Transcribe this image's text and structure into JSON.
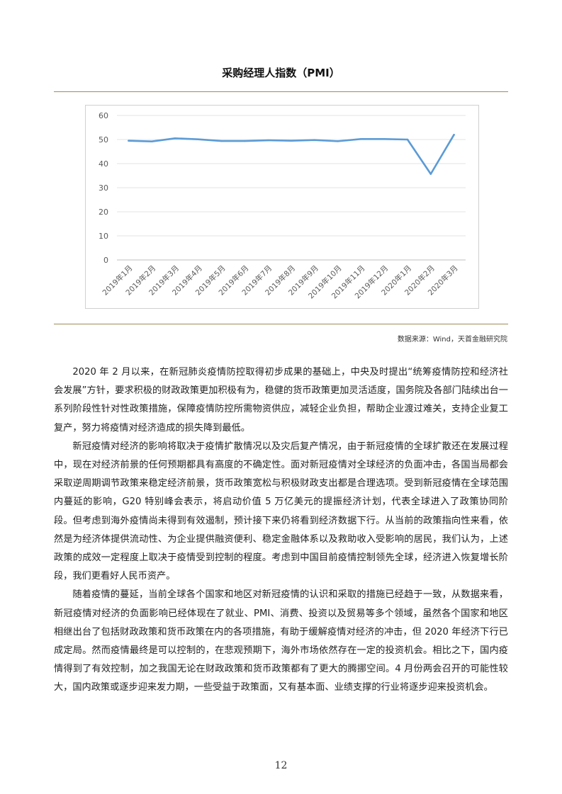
{
  "chart_title": "采购经理人指数（PMI）",
  "source_note": "数据来源：Wind，天首金融研究院",
  "chart_data": {
    "type": "line",
    "categories": [
      "2019年1月",
      "2019年2月",
      "2019年3月",
      "2019年4月",
      "2019年5月",
      "2019年6月",
      "2019年7月",
      "2019年8月",
      "2019年9月",
      "2019年10月",
      "2019年11月",
      "2019年12月",
      "2020年1月",
      "2020年2月",
      "2020年3月"
    ],
    "values": [
      49.5,
      49.2,
      50.5,
      50.1,
      49.4,
      49.4,
      49.7,
      49.5,
      49.8,
      49.3,
      50.2,
      50.2,
      50.0,
      35.7,
      52.0
    ],
    "yticks": [
      0,
      10,
      20,
      30,
      40,
      50,
      60
    ],
    "ylim": [
      0,
      60
    ],
    "grid": true,
    "legend": "none",
    "line_color": "#5b9bd5"
  },
  "paragraphs": [
    "2020 年 2 月以来，在新冠肺炎疫情防控取得初步成果的基础上，中央及时提出“统筹疫情防控和经济社会发展”方针，要求积极的财政政策更加积极有为，稳健的货币政策更加灵活适度，国务院及各部门陆续出台一系列阶段性针对性政策措施，保障疫情防控所需物资供应，减轻企业负担，帮助企业渡过难关，支持企业复工复产，努力将疫情对经济造成的损失降到最低。",
    "新冠疫情对经济的影响将取决于疫情扩散情况以及灾后复产情况，由于新冠疫情的全球扩散还在发展过程中，现在对经济前景的任何预期都具有高度的不确定性。面对新冠疫情对全球经济的负面冲击，各国当局都会采取逆周期调节政策来稳定经济前景，货币政策宽松与积极财政支出都是合理选项。受到新冠疫情在全球范围内蔓延的影响，G20 特别峰会表示，将启动价值 5 万亿美元的提振经济计划，代表全球进入了政策协同阶段。但考虑到海外疫情尚未得到有效遏制，预计接下来仍将看到经济数据下行。从当前的政策指向性来看，依然是为经济体提供流动性、为企业提供融资便利、稳定金融体系以及救助收入受影响的居民，我们认为，上述政策的成效一定程度上取决于疫情受到控制的程度。考虑到中国目前疫情控制领先全球，经济进入恢复增长阶段，我们更看好人民币资产。",
    "随着疫情的蔓延，当前全球各个国家和地区对新冠疫情的认识和采取的措施已经趋于一致，从数据来看，新冠疫情对经济的负面影响已经体现在了就业、PMI、消费、投资以及贸易等多个领域，虽然各个国家和地区相继出台了包括财政政策和货币政策在内的各项措施，有助于缓解疫情对经济的冲击，但 2020 年经济下行已成定局。然而疫情最终是可以控制的，在悲观预期下，海外市场依然存在一定的投资机会。相比之下，国内疫情得到了有效控制，加之我国无论在财政政策和货币政策都有了更大的腾挪空间。4 月份两会召开的可能性较大，国内政策或逐步迎来发力期，一些受益于政策面，又有基本面、业绩支撑的行业将逐步迎来投资机会。"
  ],
  "page_number": "12"
}
